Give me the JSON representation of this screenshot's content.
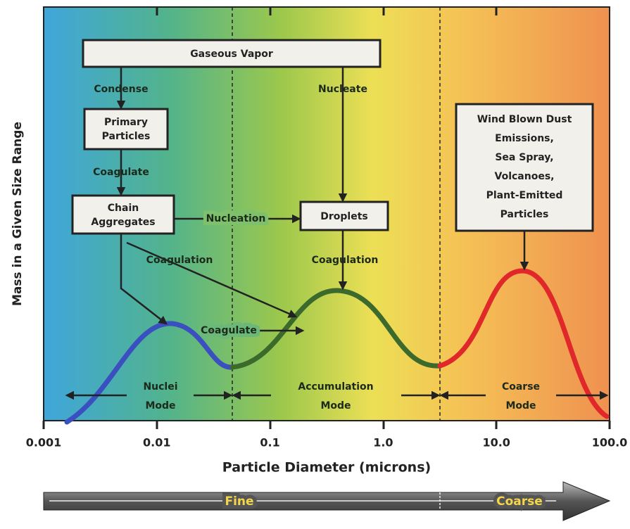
{
  "y_axis_label": "Mass in a Given Size Range",
  "x_axis": {
    "label": "Particle Diameter (microns)",
    "ticks": [
      "0.001",
      "0.01",
      "0.1",
      "1.0",
      "10.0",
      "100.0"
    ]
  },
  "boxes": {
    "gaseous_vapor": [
      "Gaseous Vapor"
    ],
    "primary_particles": [
      "Primary",
      "Particles"
    ],
    "chain_aggregates": [
      "Chain",
      "Aggregates"
    ],
    "droplets": [
      "Droplets"
    ],
    "sources": [
      "Wind Blown Dust",
      "Emissions,",
      "Sea Spray,",
      "Volcanoes,",
      "Plant-Emitted",
      "Particles"
    ]
  },
  "processes": {
    "condense": "Condense",
    "coagulate_1": "Coagulate",
    "nucleate": "Nucleate",
    "nucleation": "Nucleation",
    "coagulation_1": "Coagulation",
    "coagulation_2": "Coagulation",
    "coagulate_2": "Coagulate"
  },
  "modes": {
    "nuclei": [
      "Nuclei",
      "Mode"
    ],
    "accumulation": [
      "Accumulation",
      "Mode"
    ],
    "coarse": [
      "Coarse",
      "Mode"
    ]
  },
  "size_band": {
    "fine": "Fine",
    "coarse": "Coarse"
  }
}
